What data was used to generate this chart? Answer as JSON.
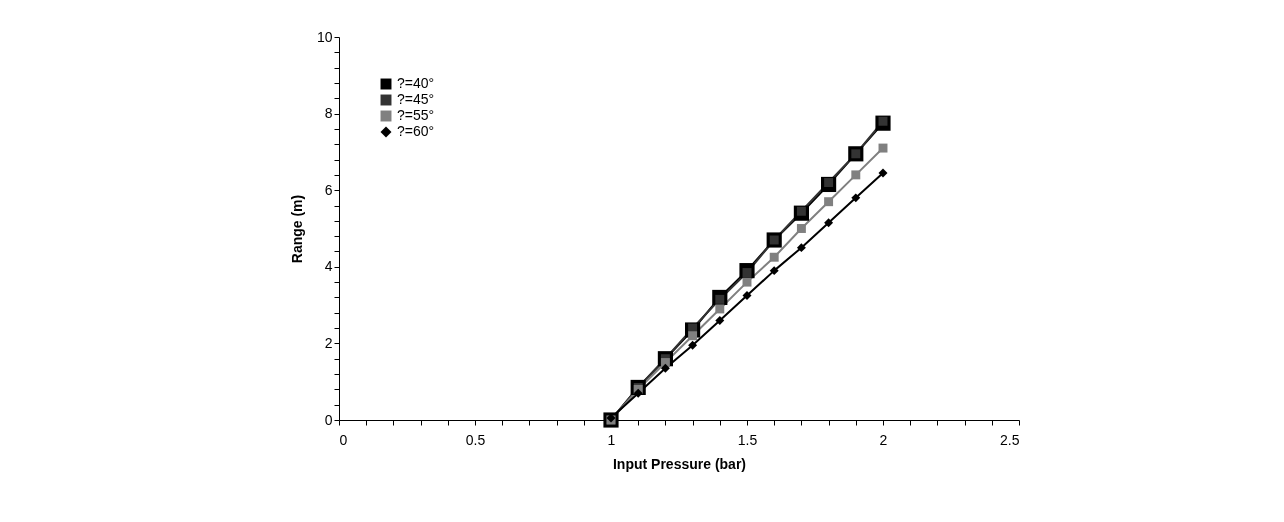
{
  "chart_data": {
    "type": "line",
    "xlabel": "Input Pressure (bar)",
    "ylabel": "Range (m)",
    "x": [
      1.0,
      1.1,
      1.2,
      1.3,
      1.4,
      1.5,
      1.6,
      1.7,
      1.8,
      1.9,
      2.0
    ],
    "series": [
      {
        "name": "?=40°",
        "color": "#000000",
        "marker": "square",
        "values": [
          0,
          0.85,
          1.6,
          2.35,
          3.2,
          3.9,
          4.7,
          5.4,
          6.15,
          6.95,
          7.75
        ]
      },
      {
        "name": "?=45°",
        "color": "#333333",
        "marker": "square",
        "values": [
          0,
          0.85,
          1.6,
          2.4,
          3.15,
          3.85,
          4.7,
          5.45,
          6.2,
          6.95,
          7.8
        ]
      },
      {
        "name": "?=55°",
        "color": "#808080",
        "marker": "square",
        "values": [
          0,
          0.8,
          1.5,
          2.2,
          2.9,
          3.6,
          4.25,
          5.0,
          5.7,
          6.4,
          7.1
        ]
      },
      {
        "name": "?=60°",
        "color": "#000000",
        "marker": "diamond",
        "values": [
          0.05,
          0.7,
          1.35,
          1.95,
          2.6,
          3.25,
          3.9,
          4.5,
          5.15,
          5.8,
          6.45
        ]
      }
    ],
    "xlim": [
      0,
      2.5
    ],
    "ylim": [
      0,
      10
    ],
    "xticks": [
      0,
      {
        "value": 0.1,
        "label": null
      },
      {
        "value": 0.2,
        "label": null
      },
      {
        "value": 0.3,
        "label": null
      },
      {
        "value": 0.4,
        "label": null
      },
      0.5,
      {
        "value": 0.6,
        "label": null
      },
      {
        "value": 0.7,
        "label": null
      },
      {
        "value": 0.8,
        "label": null
      },
      {
        "value": 0.9,
        "label": null
      },
      1,
      {
        "value": 1.1,
        "label": null
      },
      {
        "value": 1.2,
        "label": null
      },
      {
        "value": 1.3,
        "label": null
      },
      {
        "value": 1.4,
        "label": null
      },
      1.5,
      {
        "value": 1.6,
        "label": null
      },
      {
        "value": 1.7,
        "label": null
      },
      {
        "value": 1.8,
        "label": null
      },
      {
        "value": 1.9,
        "label": null
      },
      2,
      {
        "value": 2.1,
        "label": null
      },
      {
        "value": 2.2,
        "label": null
      },
      {
        "value": 2.3,
        "label": null
      },
      {
        "value": 2.4,
        "label": null
      },
      2.5
    ],
    "yticks": [
      0,
      {
        "value": 0.4,
        "label": null
      },
      {
        "value": 0.8,
        "label": null
      },
      {
        "value": 1.2,
        "label": null
      },
      {
        "value": 1.6,
        "label": null
      },
      2,
      {
        "value": 2.4,
        "label": null
      },
      {
        "value": 2.8,
        "label": null
      },
      {
        "value": 3.2,
        "label": null
      },
      {
        "value": 3.6,
        "label": null
      },
      4,
      {
        "value": 4.4,
        "label": null
      },
      {
        "value": 4.8,
        "label": null
      },
      {
        "value": 5.2,
        "label": null
      },
      {
        "value": 5.6,
        "label": null
      },
      6,
      {
        "value": 6.4,
        "label": null
      },
      {
        "value": 6.8,
        "label": null
      },
      {
        "value": 7.2,
        "label": null
      },
      {
        "value": 7.6,
        "label": null
      },
      8,
      {
        "value": 8.4,
        "label": null
      },
      {
        "value": 8.8,
        "label": null
      },
      {
        "value": 9.2,
        "label": null
      },
      {
        "value": 9.6,
        "label": null
      },
      10
    ],
    "grid": false,
    "legend": "top left",
    "line_style": "solid"
  }
}
